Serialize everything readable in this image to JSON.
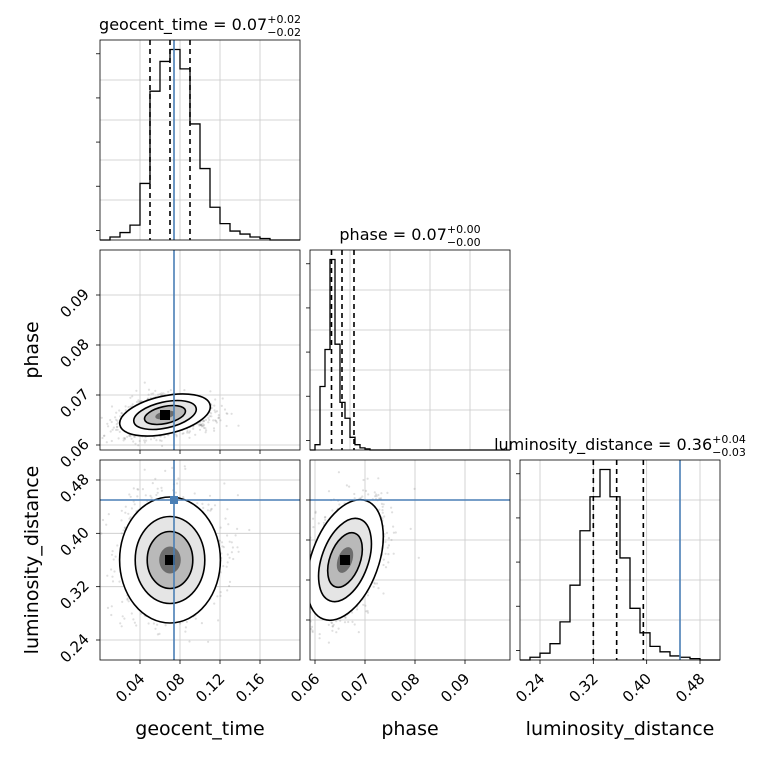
{
  "chart_data": [
    {
      "type": "histogram",
      "panel": "geocent_time_marginal",
      "title_prefix": "geocent_time = 0.07",
      "title_plus": "+0.02",
      "title_minus": "−0.02",
      "xlim": [
        0.0,
        0.2
      ],
      "bin_width": 0.01,
      "counts": [
        0,
        2,
        5,
        10,
        38,
        100,
        120,
        128,
        115,
        78,
        48,
        22,
        11,
        6,
        4,
        2,
        1,
        0,
        0,
        0
      ],
      "quantiles": [
        0.05,
        0.07,
        0.09
      ],
      "truth": 0.074,
      "grid": true
    },
    {
      "type": "scatter-contour",
      "panel": "geocent_time_vs_phase",
      "xlim": [
        0.0,
        0.2
      ],
      "ylim": [
        0.059,
        0.099
      ],
      "ylabel": "phase",
      "yticks": [
        "0.06",
        "0.07",
        "0.08",
        "0.09"
      ],
      "truth": [
        0.074,
        null
      ],
      "density_peak": [
        0.065,
        0.066
      ],
      "grid": true
    },
    {
      "type": "histogram",
      "panel": "phase_marginal",
      "title_prefix": "phase = 0.07",
      "title_plus": "+0.00",
      "title_minus": "−0.00",
      "xlim": [
        0.059,
        0.099
      ],
      "bin_width": 0.001,
      "counts": [
        0,
        5,
        60,
        95,
        180,
        100,
        45,
        30,
        12,
        5,
        2,
        1,
        0,
        0,
        0,
        0,
        0,
        0,
        0,
        0,
        0,
        0,
        0,
        0,
        0,
        0,
        0,
        0,
        0,
        0,
        0,
        0,
        0,
        0,
        0,
        0,
        0,
        0,
        0,
        0
      ],
      "quantiles": [
        0.0633,
        0.0654,
        0.0678
      ],
      "grid": true
    },
    {
      "type": "scatter-contour",
      "panel": "geocent_time_vs_luminosity_distance",
      "xlim": [
        0.0,
        0.2
      ],
      "ylim": [
        0.21,
        0.51
      ],
      "xlabel": "geocent_time",
      "ylabel": "luminosity_distance",
      "xticks": [
        "0.04",
        "0.08",
        "0.12",
        "0.16"
      ],
      "yticks": [
        "0.24",
        "0.32",
        "0.40",
        "0.48"
      ],
      "truth": [
        0.074,
        0.45
      ],
      "density_peak": [
        0.07,
        0.36
      ],
      "grid": true
    },
    {
      "type": "scatter-contour",
      "panel": "phase_vs_luminosity_distance",
      "xlim": [
        0.059,
        0.099
      ],
      "ylim": [
        0.21,
        0.51
      ],
      "xlabel": "phase",
      "xticks": [
        "0.06",
        "0.07",
        "0.08",
        "0.09"
      ],
      "truth": [
        null,
        0.45
      ],
      "density_peak": [
        0.066,
        0.36
      ],
      "grid": true
    },
    {
      "type": "histogram",
      "panel": "luminosity_distance_marginal",
      "title_prefix": "luminosity_distance = 0.36",
      "title_plus": "+0.04",
      "title_minus": "−0.03",
      "xlim": [
        0.21,
        0.51
      ],
      "xlabel": "luminosity_distance",
      "xticks": [
        "0.24",
        "0.32",
        "0.40",
        "0.48"
      ],
      "bin_width": 0.015,
      "counts": [
        0,
        2,
        5,
        12,
        28,
        55,
        95,
        120,
        140,
        120,
        75,
        38,
        20,
        10,
        6,
        3,
        2,
        1,
        0,
        0
      ],
      "quantiles": [
        0.32,
        0.355,
        0.395
      ],
      "truth": 0.45,
      "grid": true
    }
  ],
  "colors": {
    "truth": "#4a7fb5",
    "histogram": "#000000",
    "quantile": "#000000",
    "grid": "#c8c8c8",
    "points": "#7f7f7f"
  }
}
